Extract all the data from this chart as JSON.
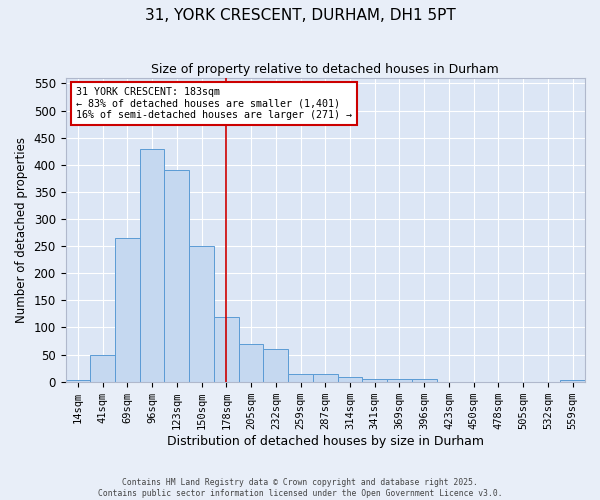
{
  "title_line1": "31, YORK CRESCENT, DURHAM, DH1 5PT",
  "title_line2": "Size of property relative to detached houses in Durham",
  "xlabel": "Distribution of detached houses by size in Durham",
  "ylabel": "Number of detached properties",
  "bin_labels": [
    "14sqm",
    "41sqm",
    "69sqm",
    "96sqm",
    "123sqm",
    "150sqm",
    "178sqm",
    "205sqm",
    "232sqm",
    "259sqm",
    "287sqm",
    "314sqm",
    "341sqm",
    "369sqm",
    "396sqm",
    "423sqm",
    "450sqm",
    "478sqm",
    "505sqm",
    "532sqm",
    "559sqm"
  ],
  "bar_heights": [
    3,
    50,
    265,
    430,
    390,
    250,
    120,
    70,
    60,
    15,
    15,
    8,
    5,
    5,
    5,
    0,
    0,
    0,
    0,
    0,
    3
  ],
  "bar_color": "#c5d8f0",
  "bar_edge_color": "#5b9bd5",
  "vline_x_index": 6,
  "vline_color": "#cc0000",
  "annotation_text": "31 YORK CRESCENT: 183sqm\n← 83% of detached houses are smaller (1,401)\n16% of semi-detached houses are larger (271) →",
  "annotation_box_color": "#ffffff",
  "annotation_box_edge": "#cc0000",
  "ylim": [
    0,
    560
  ],
  "yticks": [
    0,
    50,
    100,
    150,
    200,
    250,
    300,
    350,
    400,
    450,
    500,
    550
  ],
  "background_color": "#dce6f5",
  "fig_color": "#e8eef8",
  "footer_line1": "Contains HM Land Registry data © Crown copyright and database right 2025.",
  "footer_line2": "Contains public sector information licensed under the Open Government Licence v3.0."
}
